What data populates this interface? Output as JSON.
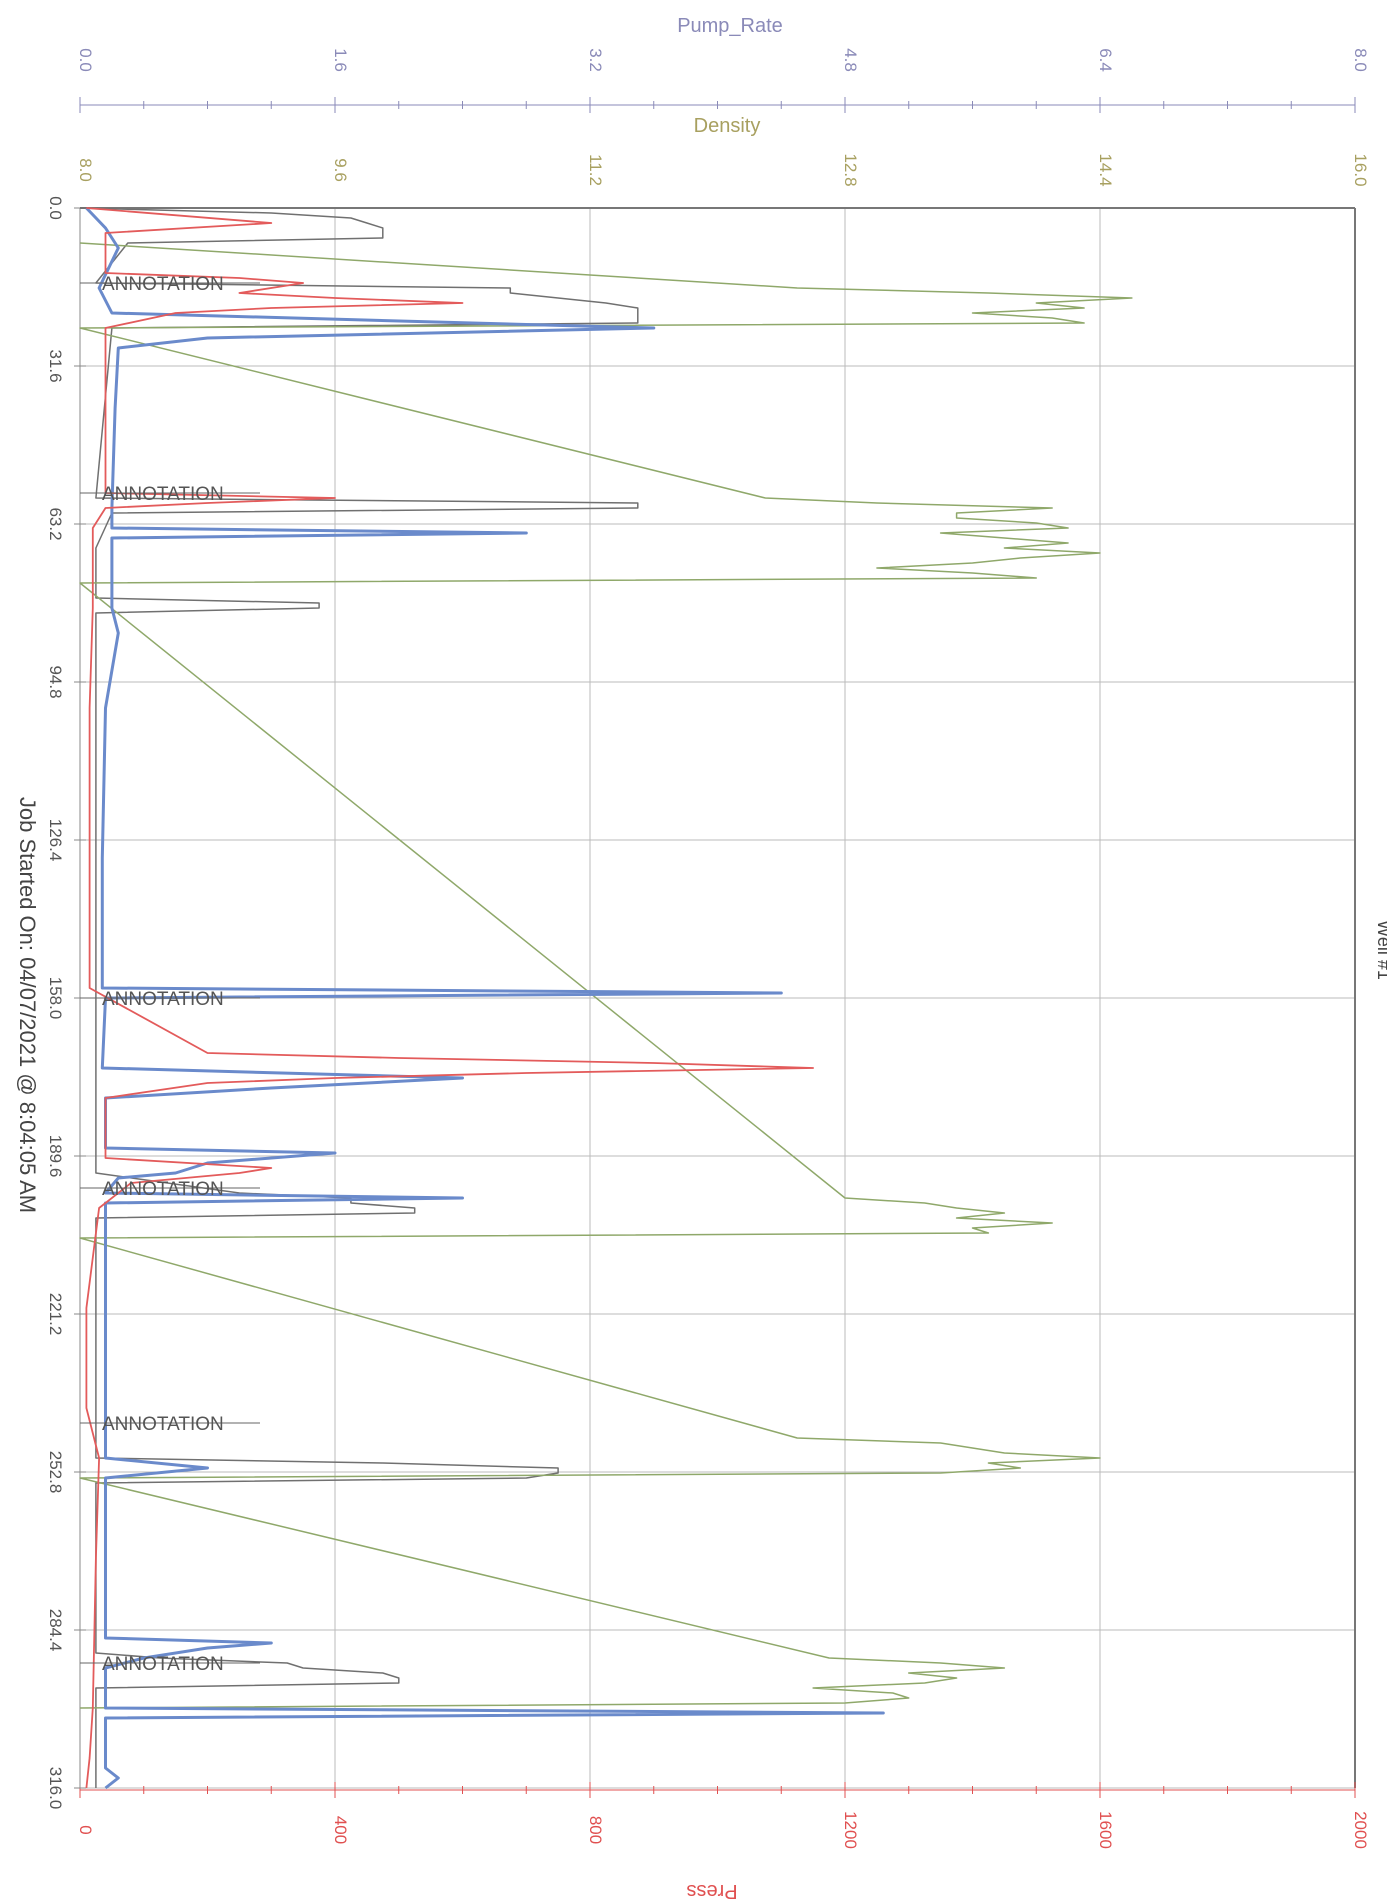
{
  "chart_data": {
    "type": "line",
    "orientation": "rotated-time-vertical",
    "time_axis": {
      "ticks": [
        "0.0",
        "31.6",
        "63.2",
        "94.8",
        "126.4",
        "158.0",
        "189.6",
        "221.2",
        "252.8",
        "284.4",
        "316.0"
      ],
      "range": [
        0,
        316
      ]
    },
    "pump_rate_axis": {
      "label": "Pump_Rate",
      "ticks": [
        "0.0",
        "1.6",
        "3.2",
        "4.8",
        "6.4",
        "8.0"
      ],
      "range": [
        0,
        8
      ],
      "color": "#8a8ab8"
    },
    "density_axis": {
      "label": "Density",
      "ticks": [
        "8.0",
        "9.6",
        "11.2",
        "12.8",
        "14.4",
        "16.0"
      ],
      "range": [
        8,
        16
      ],
      "color": "#a8a060"
    },
    "press_axis": {
      "label": "Press",
      "ticks": [
        "0",
        "400",
        "800",
        "1200",
        "1600",
        "2000"
      ],
      "range": [
        0,
        2000
      ],
      "color": "#e05050"
    },
    "footer": "Job Started On: 04/07/2021 @ 8:04:05 AM",
    "side_label": "Well #1",
    "grid": true,
    "annotations": [
      {
        "t": 15,
        "text": "ANNOTATION"
      },
      {
        "t": 57,
        "text": "ANNOTATION"
      },
      {
        "t": 196,
        "text": "ANNOTATION"
      },
      {
        "t": 243,
        "text": "ANNOTATION"
      },
      {
        "t": 291,
        "text": "ANNOTATION"
      },
      {
        "t": 158,
        "text": "ANNOTATION"
      }
    ],
    "series": [
      {
        "color": "#707070",
        "values": [
          [
            0,
            0
          ],
          [
            1,
            1.2
          ],
          [
            2,
            1.7
          ],
          [
            3,
            1.8
          ],
          [
            4,
            1.9
          ],
          [
            6,
            1.9
          ],
          [
            7,
            0.3
          ],
          [
            15,
            0.1
          ],
          [
            16,
            2.7
          ],
          [
            17,
            2.7
          ],
          [
            19,
            3.3
          ],
          [
            20,
            3.5
          ],
          [
            21,
            3.5
          ],
          [
            22,
            3.5
          ],
          [
            23,
            3.5
          ],
          [
            24,
            0.2
          ],
          [
            58,
            0.1
          ],
          [
            59,
            3.5
          ],
          [
            60,
            3.5
          ],
          [
            61,
            0.2
          ],
          [
            68,
            0.1
          ],
          [
            78,
            0.1
          ],
          [
            79,
            1.5
          ],
          [
            80,
            1.5
          ],
          [
            81,
            0.1
          ],
          [
            193,
            0.1
          ],
          [
            197,
            1.0
          ],
          [
            198,
            1.7
          ],
          [
            199,
            1.7
          ],
          [
            200,
            2.1
          ],
          [
            201,
            2.1
          ],
          [
            202,
            0.1
          ],
          [
            250,
            0.1
          ],
          [
            251,
            1.9
          ],
          [
            252,
            3.0
          ],
          [
            253,
            3.0
          ],
          [
            254,
            2.8
          ],
          [
            255,
            0.1
          ],
          [
            289,
            0.1
          ],
          [
            290,
            0.5
          ],
          [
            291,
            1.3
          ],
          [
            292,
            1.4
          ],
          [
            293,
            1.9
          ],
          [
            294,
            2.0
          ],
          [
            295,
            2.0
          ],
          [
            296,
            0.1
          ],
          [
            316,
            0.1
          ]
        ]
      },
      {
        "color": "#8fa86a",
        "values": [
          [
            7,
            8.0
          ],
          [
            16,
            12.5
          ],
          [
            17,
            13.7
          ],
          [
            18,
            14.6
          ],
          [
            19,
            14.0
          ],
          [
            20,
            14.3
          ],
          [
            21,
            13.6
          ],
          [
            22,
            14.1
          ],
          [
            23,
            14.3
          ],
          [
            24,
            8.0
          ],
          [
            58,
            12.3
          ],
          [
            59,
            13.0
          ],
          [
            60,
            14.1
          ],
          [
            61,
            13.5
          ],
          [
            62,
            13.5
          ],
          [
            63,
            14.0
          ],
          [
            64,
            14.2
          ],
          [
            65,
            13.4
          ],
          [
            66,
            13.8
          ],
          [
            67,
            14.2
          ],
          [
            68,
            13.8
          ],
          [
            69,
            14.4
          ],
          [
            70,
            13.9
          ],
          [
            71,
            13.6
          ],
          [
            72,
            13.0
          ],
          [
            73,
            13.6
          ],
          [
            74,
            14.0
          ],
          [
            75,
            8.0
          ],
          [
            198,
            12.8
          ],
          [
            199,
            13.3
          ],
          [
            200,
            13.5
          ],
          [
            201,
            13.8
          ],
          [
            202,
            13.5
          ],
          [
            203,
            14.1
          ],
          [
            204,
            13.6
          ],
          [
            205,
            13.7
          ],
          [
            206,
            8.0
          ],
          [
            246,
            12.5
          ],
          [
            247,
            13.4
          ],
          [
            248,
            13.6
          ],
          [
            249,
            13.8
          ],
          [
            250,
            14.4
          ],
          [
            251,
            13.7
          ],
          [
            252,
            13.9
          ],
          [
            253,
            13.4
          ],
          [
            254,
            8.0
          ],
          [
            290,
            12.7
          ],
          [
            291,
            13.4
          ],
          [
            292,
            13.8
          ],
          [
            293,
            13.2
          ],
          [
            294,
            13.5
          ],
          [
            295,
            13.3
          ],
          [
            296,
            12.6
          ],
          [
            297,
            13.1
          ],
          [
            298,
            13.2
          ],
          [
            299,
            12.8
          ],
          [
            300,
            8.0
          ]
        ]
      },
      {
        "color": "#6a8acb",
        "values": [
          [
            0,
            10
          ],
          [
            4,
            40
          ],
          [
            6,
            50
          ],
          [
            8,
            60
          ],
          [
            16,
            30
          ],
          [
            21,
            50
          ],
          [
            24,
            900
          ],
          [
            26,
            200
          ],
          [
            28,
            60
          ],
          [
            40,
            55
          ],
          [
            60,
            50
          ],
          [
            64,
            50
          ],
          [
            65,
            700
          ],
          [
            66,
            50
          ],
          [
            80,
            50
          ],
          [
            85,
            60
          ],
          [
            100,
            40
          ],
          [
            130,
            35
          ],
          [
            156,
            35
          ],
          [
            157,
            1100
          ],
          [
            158,
            40
          ],
          [
            172,
            35
          ],
          [
            174,
            600
          ],
          [
            176,
            300
          ],
          [
            178,
            40
          ],
          [
            188,
            40
          ],
          [
            189,
            400
          ],
          [
            191,
            200
          ],
          [
            193,
            150
          ],
          [
            194,
            60
          ],
          [
            197,
            40
          ],
          [
            198,
            600
          ],
          [
            199,
            40
          ],
          [
            200,
            40
          ],
          [
            250,
            40
          ],
          [
            252,
            200
          ],
          [
            254,
            40
          ],
          [
            286,
            40
          ],
          [
            287,
            300
          ],
          [
            288,
            200
          ],
          [
            290,
            100
          ],
          [
            292,
            40
          ],
          [
            300,
            40
          ],
          [
            301,
            1260
          ],
          [
            302,
            40
          ],
          [
            312,
            40
          ],
          [
            314,
            60
          ],
          [
            316,
            40
          ]
        ]
      },
      {
        "color": "#e35b5b",
        "values": [
          [
            0,
            10
          ],
          [
            3,
            300
          ],
          [
            5,
            40
          ],
          [
            13,
            40
          ],
          [
            14,
            250
          ],
          [
            15,
            350
          ],
          [
            17,
            250
          ],
          [
            18,
            400
          ],
          [
            19,
            600
          ],
          [
            20,
            300
          ],
          [
            21,
            150
          ],
          [
            24,
            40
          ],
          [
            57,
            40
          ],
          [
            58,
            400
          ],
          [
            59,
            200
          ],
          [
            60,
            40
          ],
          [
            64,
            20
          ],
          [
            80,
            20
          ],
          [
            100,
            15
          ],
          [
            156,
            15
          ],
          [
            169,
            200
          ],
          [
            170,
            500
          ],
          [
            171,
            900
          ],
          [
            172,
            1150
          ],
          [
            173,
            700
          ],
          [
            174,
            400
          ],
          [
            175,
            200
          ],
          [
            178,
            40
          ],
          [
            190,
            40
          ],
          [
            192,
            300
          ],
          [
            193,
            250
          ],
          [
            195,
            80
          ],
          [
            200,
            30
          ],
          [
            220,
            10
          ],
          [
            240,
            10
          ],
          [
            250,
            30
          ],
          [
            270,
            25
          ],
          [
            300,
            20
          ],
          [
            310,
            15
          ],
          [
            316,
            10
          ]
        ]
      }
    ]
  }
}
